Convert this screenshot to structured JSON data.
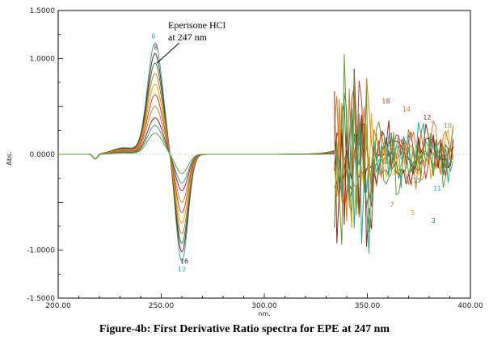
{
  "chart_data": {
    "type": "line",
    "title": "",
    "xlabel": "nm.",
    "ylabel": "Abs.",
    "xlim": [
      200,
      400
    ],
    "ylim": [
      -1.5,
      1.5
    ],
    "x_ticks": [
      "200.00",
      "250.00",
      "300.00",
      "350.00",
      "400.00"
    ],
    "y_ticks": [
      "1.5000",
      "1.0000",
      "0.0000",
      "-1.0000",
      "-1.5000"
    ],
    "peak": {
      "x": 247,
      "label": "Eperisone HCl",
      "label2": "at 247 nm",
      "max_value": 1.16
    },
    "trough": {
      "x": 260,
      "min_value": -1.12
    },
    "series": [
      {
        "name": "6",
        "color": "#2aa8b8",
        "peak": 1.16,
        "trough": -1.12
      },
      {
        "name": "8",
        "color": "#8b1a1a",
        "peak": 1.05,
        "trough": -1.02
      },
      {
        "name": "7",
        "color": "#1f8a3a",
        "peak": 0.95,
        "trough": -0.93
      },
      {
        "name": "5",
        "color": "#e07020",
        "peak": 0.84,
        "trough": -0.83
      },
      {
        "name": "4",
        "color": "#f0a800",
        "peak": 0.73,
        "trough": -0.72
      },
      {
        "name": "3",
        "color": "#c04040",
        "peak": 0.62,
        "trough": -0.61
      },
      {
        "name": "2",
        "color": "#d08020",
        "peak": 0.5,
        "trough": -0.5
      },
      {
        "name": "1",
        "color": "#9b2020",
        "peak": 0.38,
        "trough": -0.38
      },
      {
        "name": "13",
        "color": "#20b080",
        "peak": 0.3,
        "trough": -0.3
      },
      {
        "name": "12",
        "color": "#6a9a30",
        "peak": 0.22,
        "trough": -0.2
      }
    ],
    "series_labels_top": [
      "6",
      "8"
    ],
    "series_labels_bottom": [
      "12",
      "16"
    ],
    "noise_region": [
      334,
      400
    ],
    "noise_labels": [
      "1",
      "2",
      "3",
      "4",
      "5",
      "6",
      "7",
      "8",
      "9",
      "10",
      "11",
      "12",
      "13",
      "14",
      "16",
      "18"
    ]
  },
  "caption": "Figure-4b: First Derivative Ratio spectra for EPE at 247 nm"
}
